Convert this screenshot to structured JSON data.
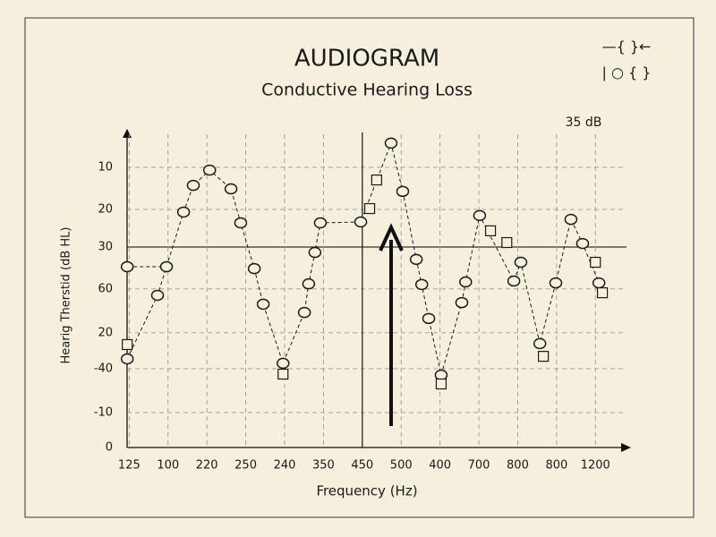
{
  "chart_data": {
    "type": "line",
    "title": "AUDIOGRAM",
    "subtitle": "Conductive Hearing Loss",
    "annotation": "35 dB",
    "legend_symbols": [
      "—{  }←",
      "| ○ { }"
    ],
    "xlabel": "Frequency (Hz)",
    "ylabel": "Hearig Therstid (dB HL)",
    "xlim": [
      -0.1,
      12.8
    ],
    "ylim": [
      0,
      100
    ],
    "xticks": [
      {
        "value": 0,
        "label": "125"
      },
      {
        "value": 1,
        "label": "100"
      },
      {
        "value": 2,
        "label": "220"
      },
      {
        "value": 3,
        "label": "250"
      },
      {
        "value": 4,
        "label": "240"
      },
      {
        "value": 5,
        "label": "350"
      },
      {
        "value": 6,
        "label": "450"
      },
      {
        "value": 7,
        "label": "500"
      },
      {
        "value": 8,
        "label": "400"
      },
      {
        "value": 9,
        "label": "700"
      },
      {
        "value": 10,
        "label": "800"
      },
      {
        "value": 11,
        "label": "800"
      },
      {
        "value": 12,
        "label": "1200"
      }
    ],
    "yticks": [
      {
        "value": 88.2,
        "label": "10"
      },
      {
        "value": 74.9,
        "label": "20"
      },
      {
        "value": 63.1,
        "label": "30"
      },
      {
        "value": 49.9,
        "label": "60"
      },
      {
        "value": 36.1,
        "label": "20"
      },
      {
        "value": 24.8,
        "label": "-40"
      },
      {
        "value": 11.0,
        "label": "-10"
      },
      0
    ],
    "grid": true,
    "series": [
      {
        "marker": "circle",
        "color": "#1a1a1a",
        "x": [
          -0.05,
          0.96,
          null,
          -0.05,
          0.73,
          1.4,
          1.65,
          2.07,
          2.62,
          2.87,
          3.22,
          3.45,
          3.96,
          4.51,
          4.62,
          4.78,
          4.92,
          5.96,
          6.74,
          7.04,
          7.39,
          7.53,
          7.71,
          8.03,
          8.56,
          8.66,
          9.02,
          9.9,
          10.08,
          10.57,
          10.98,
          11.37,
          11.67,
          12.09
        ],
        "values": [
          56.9,
          56.9,
          null,
          27.9,
          47.9,
          74.1,
          82.5,
          87.3,
          81.4,
          70.7,
          56.3,
          45.1,
          26.5,
          42.5,
          51.5,
          61.4,
          70.7,
          71.0,
          95.8,
          80.6,
          59.2,
          51.3,
          40.6,
          22.8,
          45.6,
          52.1,
          73.0,
          52.4,
          58.3,
          32.7,
          51.8,
          71.8,
          64.2,
          51.8
        ]
      },
      {
        "marker": "square",
        "color": "#1a1a1a",
        "x": [
          -0.05,
          3.96,
          6.19,
          6.37,
          8.03,
          9.3,
          9.72,
          10.66,
          12.0,
          12.18
        ],
        "values": [
          32.4,
          23.1,
          75.2,
          84.2,
          20.0,
          68.2,
          64.5,
          28.7,
          58.3,
          48.7
        ]
      }
    ]
  }
}
